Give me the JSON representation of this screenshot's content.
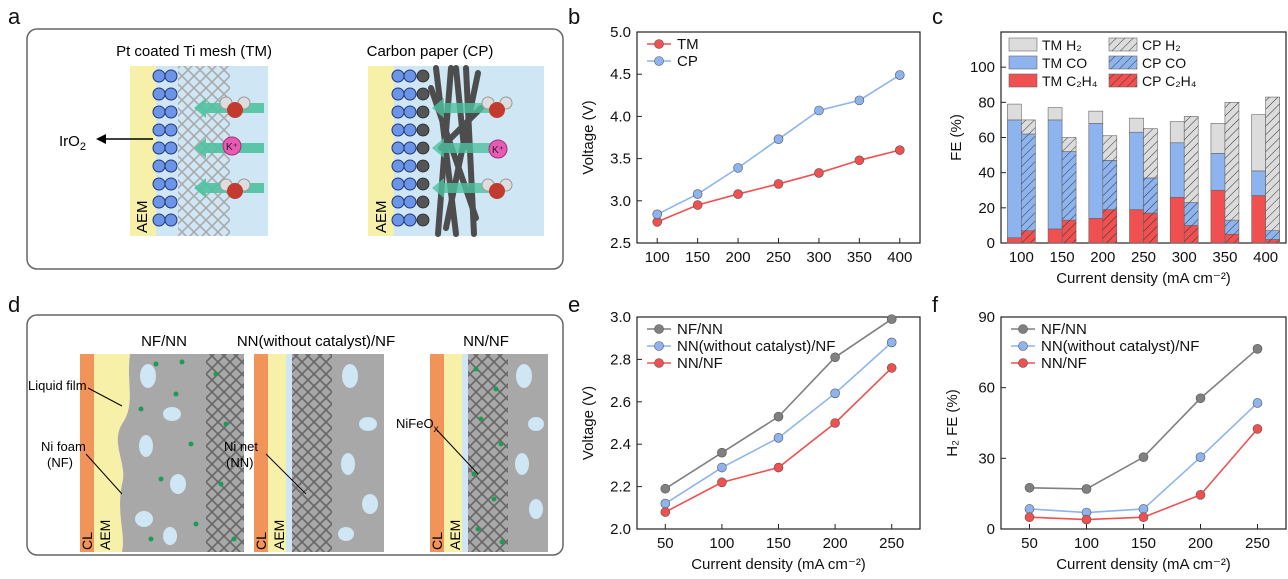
{
  "panels": {
    "a": {
      "letter": "a",
      "left_title": "Pt coated Ti mesh (TM)",
      "right_title": "Carbon paper (CP)",
      "iro2": "IrO",
      "iro2_sub": "2",
      "aem_left": "AEM",
      "aem_right": "AEM",
      "kplus": "K⁺"
    },
    "b": {
      "letter": "b"
    },
    "c": {
      "letter": "c"
    },
    "d": {
      "letter": "d",
      "title1": "NF/NN",
      "title2": "NN(without catalyst)/NF",
      "title3": "NN/NF",
      "liquid_film": "Liquid film",
      "ni_foam": "Ni foam",
      "nf": "(NF)",
      "ni_net": "Ni net",
      "nn": "(NN)",
      "nifeox": "NiFeO",
      "nifeox_sub": "x",
      "cl": "CL",
      "aem": "AEM"
    },
    "e": {
      "letter": "e"
    },
    "f": {
      "letter": "f"
    }
  },
  "colors": {
    "red": "#f05050",
    "blue": "#8db4ee",
    "gray": "#808080",
    "lightgray": "#dcdcdc",
    "aem_yellow": "#f7f0a8",
    "electrolyte_blue": "#cfe6f5",
    "cl_orange": "#f0945a",
    "catalyst_green": "#1e9c55"
  },
  "chart_data": [
    {
      "id": "b",
      "type": "line",
      "ylabel": "Voltage (V)",
      "x": [
        100,
        150,
        200,
        250,
        300,
        350,
        400
      ],
      "xlim": [
        75,
        425
      ],
      "ylim": [
        2.5,
        5.0
      ],
      "yticks": [
        2.5,
        3.0,
        3.5,
        4.0,
        4.5,
        5.0
      ],
      "ytick_labels": [
        "2.5",
        "3.0",
        "3.5",
        "4.0",
        "4.5",
        "5.0"
      ],
      "xtick_labels": [
        "100",
        "150",
        "200",
        "250",
        "300",
        "350",
        "400"
      ],
      "legend_position": "top-left",
      "series": [
        {
          "name": "TM",
          "color": "#f05050",
          "values": [
            2.75,
            2.95,
            3.08,
            3.2,
            3.33,
            3.48,
            3.6
          ]
        },
        {
          "name": "CP",
          "color": "#8db4ee",
          "values": [
            2.84,
            3.08,
            3.39,
            3.73,
            4.07,
            4.19,
            4.49
          ]
        }
      ]
    },
    {
      "id": "c",
      "type": "bar",
      "ylabel": "FE (%)",
      "xlabel": "Current density (mA cm⁻²)",
      "categories": [
        "100",
        "150",
        "200",
        "250",
        "300",
        "350",
        "400"
      ],
      "ylim": [
        0,
        120
      ],
      "yticks": [
        0,
        20,
        40,
        60,
        80,
        100
      ],
      "legend_position": "top",
      "legend": [
        "TM H₂",
        "CP H₂",
        "TM CO",
        "CP CO",
        "TM C₂H₄",
        "CP C₂H₄"
      ],
      "stacked": true,
      "series": [
        {
          "name": "TM C₂H₄",
          "group": "TM",
          "color": "#f05050",
          "hatched": false,
          "values": [
            3,
            8,
            14,
            19,
            26,
            30,
            27
          ]
        },
        {
          "name": "TM CO",
          "group": "TM",
          "color": "#8db4ee",
          "hatched": false,
          "values": [
            67,
            62,
            54,
            44,
            31,
            21,
            14
          ]
        },
        {
          "name": "TM H₂",
          "group": "TM",
          "color": "#dcdcdc",
          "hatched": false,
          "values": [
            9,
            7,
            7,
            8,
            12,
            17,
            32
          ]
        },
        {
          "name": "CP C₂H₄",
          "group": "CP",
          "color": "#f05050",
          "hatched": true,
          "values": [
            7,
            13,
            19,
            17,
            10,
            5,
            2
          ]
        },
        {
          "name": "CP CO",
          "group": "CP",
          "color": "#8db4ee",
          "hatched": true,
          "values": [
            55,
            39,
            28,
            20,
            13,
            8,
            5
          ]
        },
        {
          "name": "CP H₂",
          "group": "CP",
          "color": "#dcdcdc",
          "hatched": true,
          "values": [
            8,
            8,
            14,
            28,
            49,
            67,
            76
          ]
        }
      ]
    },
    {
      "id": "e",
      "type": "line",
      "ylabel": "Voltage (V)",
      "xlabel": "Current density (mA cm⁻²)",
      "x": [
        50,
        100,
        150,
        200,
        250
      ],
      "xlim": [
        25,
        275
      ],
      "ylim": [
        2.0,
        3.0
      ],
      "yticks": [
        2.0,
        2.2,
        2.4,
        2.6,
        2.8,
        3.0
      ],
      "ytick_labels": [
        "2.0",
        "2.2",
        "2.4",
        "2.6",
        "2.8",
        "3.0"
      ],
      "xtick_labels": [
        "50",
        "100",
        "150",
        "200",
        "250"
      ],
      "legend_position": "top-left",
      "series": [
        {
          "name": "NF/NN",
          "color": "#808080",
          "values": [
            2.19,
            2.36,
            2.53,
            2.81,
            2.99
          ]
        },
        {
          "name": "NN(without catalyst)/NF",
          "color": "#8db4ee",
          "values": [
            2.12,
            2.29,
            2.43,
            2.64,
            2.88
          ]
        },
        {
          "name": "NN/NF",
          "color": "#f05050",
          "values": [
            2.08,
            2.22,
            2.29,
            2.5,
            2.76
          ]
        }
      ]
    },
    {
      "id": "f",
      "type": "line",
      "ylabel": "H₂ FE (%)",
      "xlabel": "Current density (mA cm⁻²)",
      "x": [
        50,
        100,
        150,
        200,
        250
      ],
      "xlim": [
        25,
        275
      ],
      "ylim": [
        0,
        90
      ],
      "yticks": [
        0,
        30,
        60,
        90
      ],
      "ytick_labels": [
        "0",
        "30",
        "60",
        "90"
      ],
      "xtick_labels": [
        "50",
        "100",
        "150",
        "200",
        "250"
      ],
      "legend_position": "top-left",
      "series": [
        {
          "name": "NF/NN",
          "color": "#808080",
          "values": [
            17.5,
            17,
            30.5,
            55.5,
            76.5
          ]
        },
        {
          "name": "NN(without catalyst)/NF",
          "color": "#8db4ee",
          "values": [
            8.5,
            7,
            8.5,
            30.5,
            53.5
          ]
        },
        {
          "name": "NN/NF",
          "color": "#f05050",
          "values": [
            5,
            4,
            5,
            14.5,
            42.5
          ]
        }
      ]
    }
  ]
}
